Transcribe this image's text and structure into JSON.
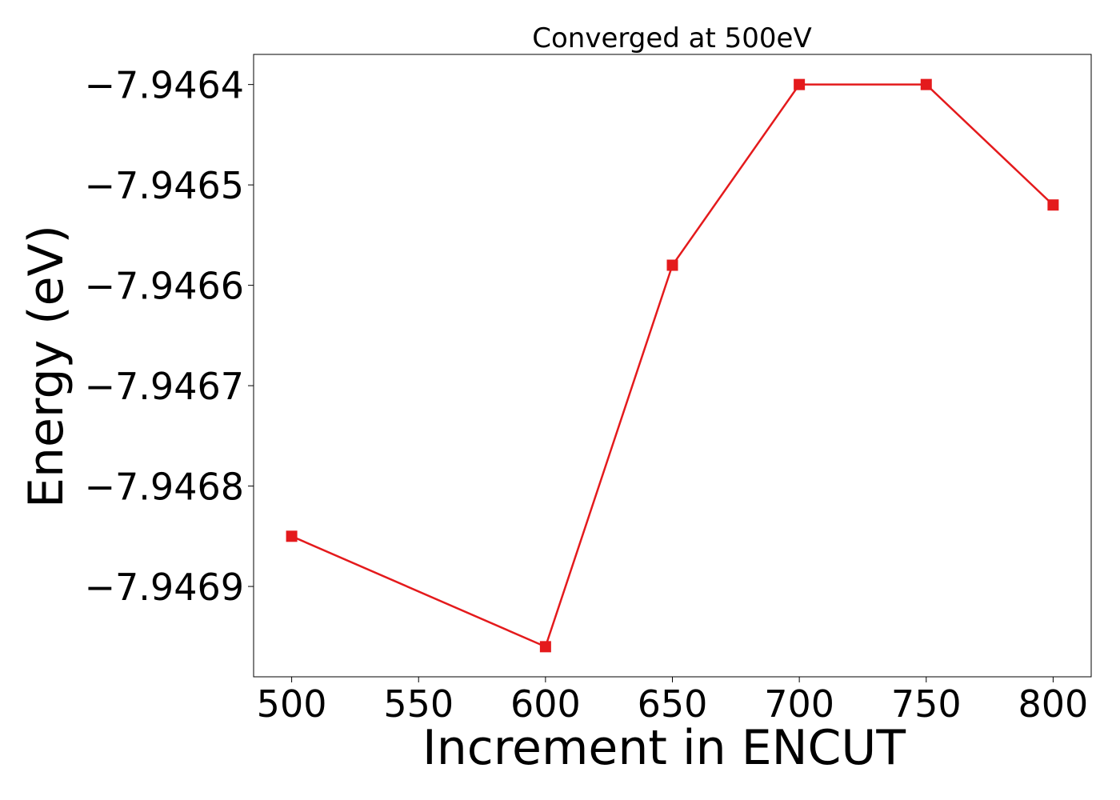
{
  "chart_data": {
    "type": "line",
    "title": "Converged at 500eV",
    "xlabel": "Increment in ENCUT",
    "ylabel": "Energy (eV)",
    "x": [
      500,
      600,
      650,
      700,
      750,
      800
    ],
    "series": [
      {
        "values": [
          -7.94685,
          -7.94696,
          -7.94658,
          -7.9464,
          -7.9464,
          -7.94652
        ],
        "color": "#e41a1c",
        "marker": "square"
      }
    ],
    "xlim": [
      485,
      815
    ],
    "ylim": [
      -7.94699,
      -7.94637
    ],
    "xticks": [
      500,
      550,
      600,
      650,
      700,
      750,
      800
    ],
    "xtick_labels": [
      "500",
      "550",
      "600",
      "650",
      "700",
      "750",
      "800"
    ],
    "yticks": [
      -7.9469,
      -7.9468,
      -7.9467,
      -7.9466,
      -7.9465,
      -7.9464
    ],
    "ytick_labels": [
      "−7.9469",
      "−7.9468",
      "−7.9467",
      "−7.9466",
      "−7.9465",
      "−7.9464"
    ],
    "grid": false,
    "legend": "none"
  }
}
